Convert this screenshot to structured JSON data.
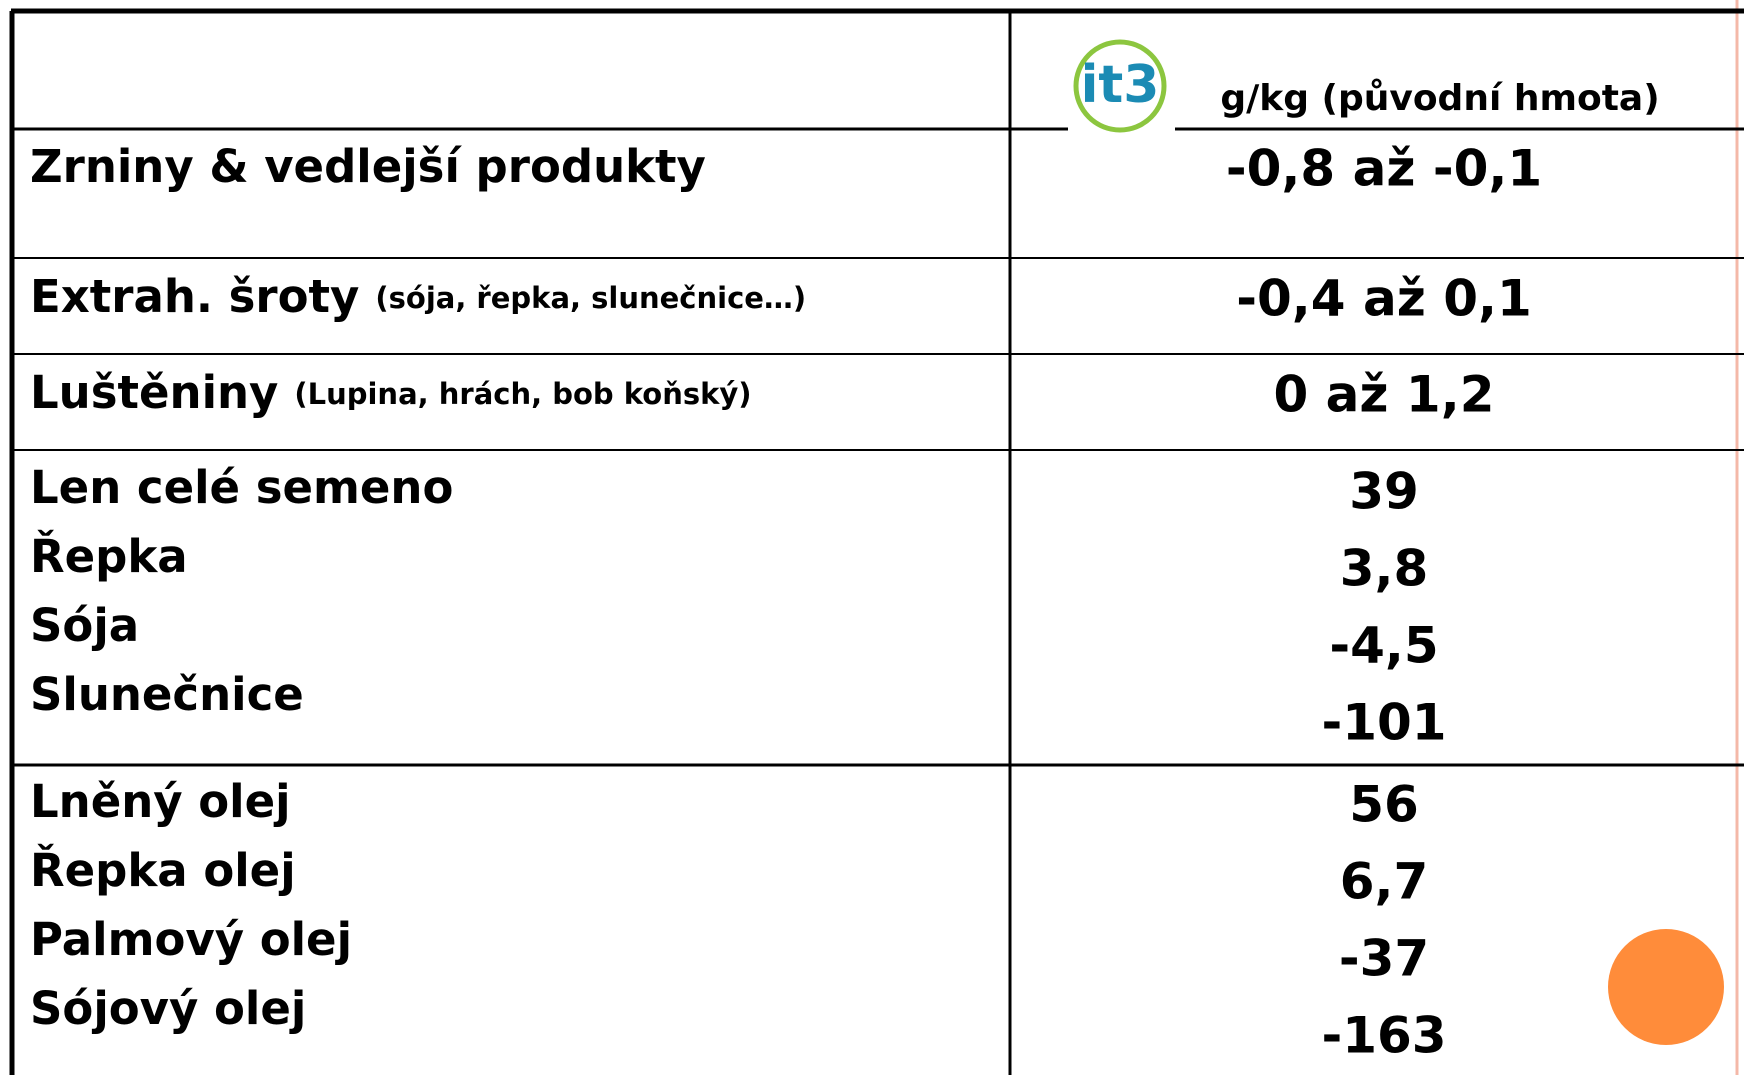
{
  "header": {
    "logo": "it3",
    "unit": "g/kg (původní hmota)"
  },
  "rows": [
    {
      "labels": [
        {
          "text": "Zrniny & vedlejší produkty"
        }
      ],
      "values": [
        "-0,8 až -0,1"
      ]
    },
    {
      "labels": [
        {
          "text": "Extrah. šroty",
          "note": "(sója, řepka, slunečnice…)"
        }
      ],
      "values": [
        "-0,4 až 0,1"
      ]
    },
    {
      "labels": [
        {
          "text": "Luštěniny",
          "note": "(Lupina, hrách, bob koňský)"
        }
      ],
      "values": [
        "0 až 1,2"
      ]
    },
    {
      "labels": [
        {
          "text": "Len celé semeno"
        },
        {
          "text": "Řepka"
        },
        {
          "text": "Sója"
        },
        {
          "text": "Slunečnice"
        }
      ],
      "values": [
        "39",
        "3,8",
        "-4,5",
        "-101"
      ]
    },
    {
      "labels": [
        {
          "text": "Lněný olej"
        },
        {
          "text": "Řepka olej"
        },
        {
          "text": "Palmový olej"
        },
        {
          "text": "Sójový olej"
        }
      ],
      "values": [
        "56",
        "6,7",
        "-37",
        "-163"
      ]
    }
  ]
}
